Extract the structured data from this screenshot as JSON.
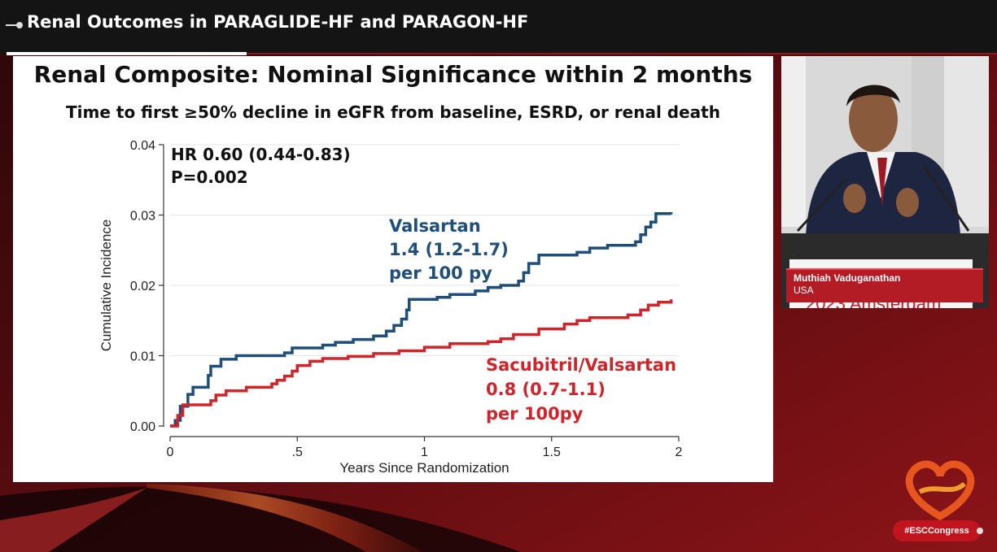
{
  "header": {
    "title": "Renal Outcomes in PARAGLIDE-HF and PARAGON-HF"
  },
  "slide": {
    "title": "Renal Composite: Nominal Significance within 2 months",
    "subtitle": "Time to first ≥50% decline in eGFR from baseline, ESRD, or renal death",
    "hr_line1": "HR 0.60 (0.44-0.83)",
    "hr_line2": "P=0.002",
    "valsartan_label": [
      "Valsartan",
      "1.4 (1.2-1.7)",
      "per 100 py"
    ],
    "sacubitril_label": [
      "Sacubitril/Valsartan",
      "0.8 (0.7-1.1)",
      "per 100py"
    ]
  },
  "chart_data": {
    "type": "line",
    "xlabel": "Years Since Randomization",
    "ylabel": "Cumulative Incidence",
    "xlim": [
      0,
      2
    ],
    "ylim": [
      0,
      0.04
    ],
    "x_ticks": [
      0,
      0.5,
      1,
      1.5,
      2
    ],
    "x_tick_labels": [
      "0",
      ".5",
      "1",
      "1.5",
      "2"
    ],
    "y_ticks": [
      0,
      0.01,
      0.02,
      0.03,
      0.04
    ],
    "y_tick_labels": [
      "0.00",
      "0.01",
      "0.02",
      "0.03",
      "0.04"
    ],
    "grid": true,
    "series": [
      {
        "name": "Valsartan",
        "color": "#1f4e79",
        "step": true,
        "points": [
          [
            0,
            0
          ],
          [
            0.02,
            0.0008
          ],
          [
            0.04,
            0.0028
          ],
          [
            0.07,
            0.0045
          ],
          [
            0.09,
            0.0055
          ],
          [
            0.15,
            0.0072
          ],
          [
            0.16,
            0.0085
          ],
          [
            0.2,
            0.0095
          ],
          [
            0.26,
            0.01
          ],
          [
            0.45,
            0.0104
          ],
          [
            0.48,
            0.0111
          ],
          [
            0.6,
            0.0115
          ],
          [
            0.65,
            0.0119
          ],
          [
            0.72,
            0.0123
          ],
          [
            0.8,
            0.0128
          ],
          [
            0.85,
            0.0135
          ],
          [
            0.88,
            0.0143
          ],
          [
            0.91,
            0.0152
          ],
          [
            0.93,
            0.0165
          ],
          [
            0.94,
            0.018
          ],
          [
            1.05,
            0.0183
          ],
          [
            1.1,
            0.0187
          ],
          [
            1.2,
            0.0192
          ],
          [
            1.25,
            0.0197
          ],
          [
            1.3,
            0.02
          ],
          [
            1.37,
            0.0206
          ],
          [
            1.39,
            0.0218
          ],
          [
            1.41,
            0.0231
          ],
          [
            1.45,
            0.0243
          ],
          [
            1.6,
            0.0247
          ],
          [
            1.65,
            0.0253
          ],
          [
            1.72,
            0.0257
          ],
          [
            1.83,
            0.0262
          ],
          [
            1.85,
            0.0272
          ],
          [
            1.87,
            0.0283
          ],
          [
            1.89,
            0.029
          ],
          [
            1.91,
            0.0302
          ],
          [
            1.97,
            0.0301
          ]
        ]
      },
      {
        "name": "Sacubitril/Valsartan",
        "color": "#d0242b",
        "step": true,
        "points": [
          [
            0,
            0
          ],
          [
            0.03,
            0.0015
          ],
          [
            0.05,
            0.003
          ],
          [
            0.16,
            0.0036
          ],
          [
            0.18,
            0.0044
          ],
          [
            0.22,
            0.005
          ],
          [
            0.3,
            0.0055
          ],
          [
            0.4,
            0.006
          ],
          [
            0.42,
            0.0065
          ],
          [
            0.45,
            0.0071
          ],
          [
            0.48,
            0.0078
          ],
          [
            0.5,
            0.0086
          ],
          [
            0.55,
            0.0092
          ],
          [
            0.6,
            0.0096
          ],
          [
            0.7,
            0.0099
          ],
          [
            0.8,
            0.0103
          ],
          [
            0.9,
            0.0107
          ],
          [
            1.0,
            0.0112
          ],
          [
            1.1,
            0.0117
          ],
          [
            1.25,
            0.012
          ],
          [
            1.3,
            0.0124
          ],
          [
            1.35,
            0.013
          ],
          [
            1.45,
            0.0138
          ],
          [
            1.55,
            0.0145
          ],
          [
            1.6,
            0.015
          ],
          [
            1.65,
            0.0154
          ],
          [
            1.8,
            0.0158
          ],
          [
            1.85,
            0.0165
          ],
          [
            1.88,
            0.0172
          ],
          [
            1.92,
            0.0176
          ],
          [
            1.97,
            0.018
          ]
        ]
      }
    ]
  },
  "video": {
    "speaker_name": "Muthiah Vaduganathan",
    "speaker_country": "USA"
  },
  "footer": {
    "hashtag": "#ESCCongress"
  },
  "colors": {
    "accent": "#c0151e",
    "valsartan": "#1f4e79",
    "sacubitril": "#d0242b"
  }
}
